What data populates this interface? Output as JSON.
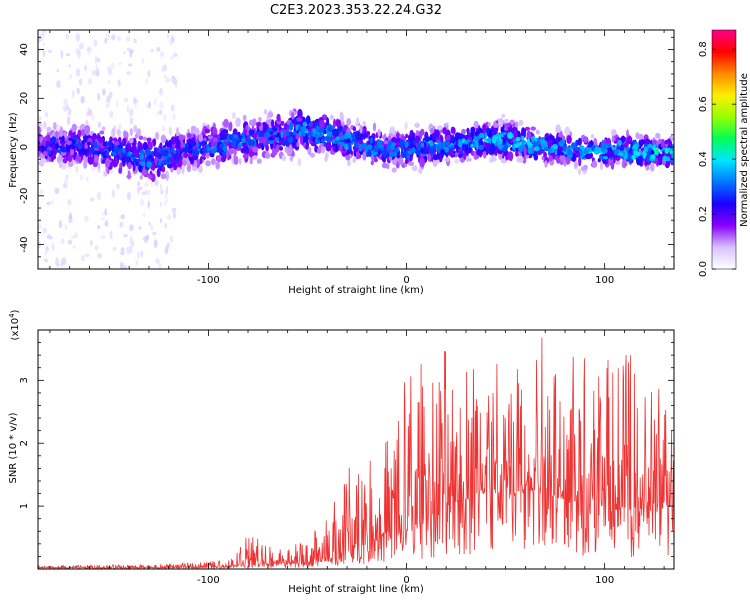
{
  "title": "C2E3.2023.353.22.24.G32",
  "chart_data": [
    {
      "type": "heatmap",
      "xlabel": "Height of straight line (km)",
      "ylabel": "Frequency (Hz)",
      "xlim": [
        -186,
        135
      ],
      "ylim": [
        -50,
        48
      ],
      "xticks": [
        -100,
        0,
        100
      ],
      "yticks": [
        -40,
        -20,
        0,
        20,
        40
      ],
      "colorbar": {
        "label": "Normalized spectral amplitude",
        "range": [
          0,
          0.87
        ],
        "ticks": [
          0.0,
          0.2,
          0.4,
          0.6,
          0.8
        ],
        "tick_labels": [
          "0.0",
          "0.2",
          "0.4",
          "0.6",
          "0.8"
        ],
        "colors": [
          "#ffffff",
          "#d9c2ff",
          "#8800ff",
          "#1a00ff",
          "#0077ff",
          "#00e5ff",
          "#00ff55",
          "#99ff00",
          "#ffee00",
          "#ff8800",
          "#ff0000",
          "#ff0088"
        ]
      },
      "profile": [
        {
          "x": -186,
          "center": 1,
          "spread": 7,
          "amp": 0.18
        },
        {
          "x": -160,
          "center": 0,
          "spread": 8,
          "amp": 0.2
        },
        {
          "x": -130,
          "center": -5,
          "spread": 9,
          "amp": 0.24
        },
        {
          "x": -110,
          "center": -1,
          "spread": 7,
          "amp": 0.2
        },
        {
          "x": -90,
          "center": 2,
          "spread": 8,
          "amp": 0.25
        },
        {
          "x": -70,
          "center": 4,
          "spread": 8,
          "amp": 0.22
        },
        {
          "x": -50,
          "center": 7,
          "spread": 9,
          "amp": 0.27
        },
        {
          "x": -30,
          "center": 3,
          "spread": 7,
          "amp": 0.25
        },
        {
          "x": -10,
          "center": -1,
          "spread": 7,
          "amp": 0.24
        },
        {
          "x": 10,
          "center": 0,
          "spread": 7,
          "amp": 0.25
        },
        {
          "x": 30,
          "center": 2,
          "spread": 6,
          "amp": 0.28
        },
        {
          "x": 50,
          "center": 3,
          "spread": 7,
          "amp": 0.3
        },
        {
          "x": 70,
          "center": 0,
          "spread": 6,
          "amp": 0.28
        },
        {
          "x": 90,
          "center": -2,
          "spread": 6,
          "amp": 0.27
        },
        {
          "x": 110,
          "center": -1,
          "spread": 6,
          "amp": 0.3
        },
        {
          "x": 135,
          "center": -3,
          "spread": 5,
          "amp": 0.33
        }
      ]
    },
    {
      "type": "line",
      "xlabel": "Height of straight line (km)",
      "ylabel": "SNR (10 * v/v)",
      "y_multiplier": "(x10",
      "y_multiplier_exp": "4",
      "y_multiplier_close": ")",
      "xlim": [
        -186,
        135
      ],
      "ylim": [
        0,
        3.8
      ],
      "xticks": [
        -100,
        0,
        100
      ],
      "yticks": [
        1,
        2,
        3
      ],
      "color": "#ee3333",
      "envelope": [
        {
          "x": -186,
          "base": 0.02,
          "peak": 0.05
        },
        {
          "x": -120,
          "base": 0.02,
          "peak": 0.08
        },
        {
          "x": -90,
          "base": 0.04,
          "peak": 0.15
        },
        {
          "x": -80,
          "base": 0.1,
          "peak": 0.6
        },
        {
          "x": -60,
          "base": 0.08,
          "peak": 0.3
        },
        {
          "x": -40,
          "base": 0.15,
          "peak": 0.8
        },
        {
          "x": -25,
          "base": 0.3,
          "peak": 2.0
        },
        {
          "x": -15,
          "base": 0.5,
          "peak": 1.6
        },
        {
          "x": 0,
          "base": 0.6,
          "peak": 3.2
        },
        {
          "x": 20,
          "base": 1.0,
          "peak": 3.6
        },
        {
          "x": 40,
          "base": 1.2,
          "peak": 3.5
        },
        {
          "x": 60,
          "base": 1.3,
          "peak": 3.8
        },
        {
          "x": 80,
          "base": 1.1,
          "peak": 3.6
        },
        {
          "x": 100,
          "base": 1.0,
          "peak": 3.5
        },
        {
          "x": 120,
          "base": 0.9,
          "peak": 3.4
        },
        {
          "x": 135,
          "base": 1.0,
          "peak": 2.6
        }
      ]
    }
  ]
}
